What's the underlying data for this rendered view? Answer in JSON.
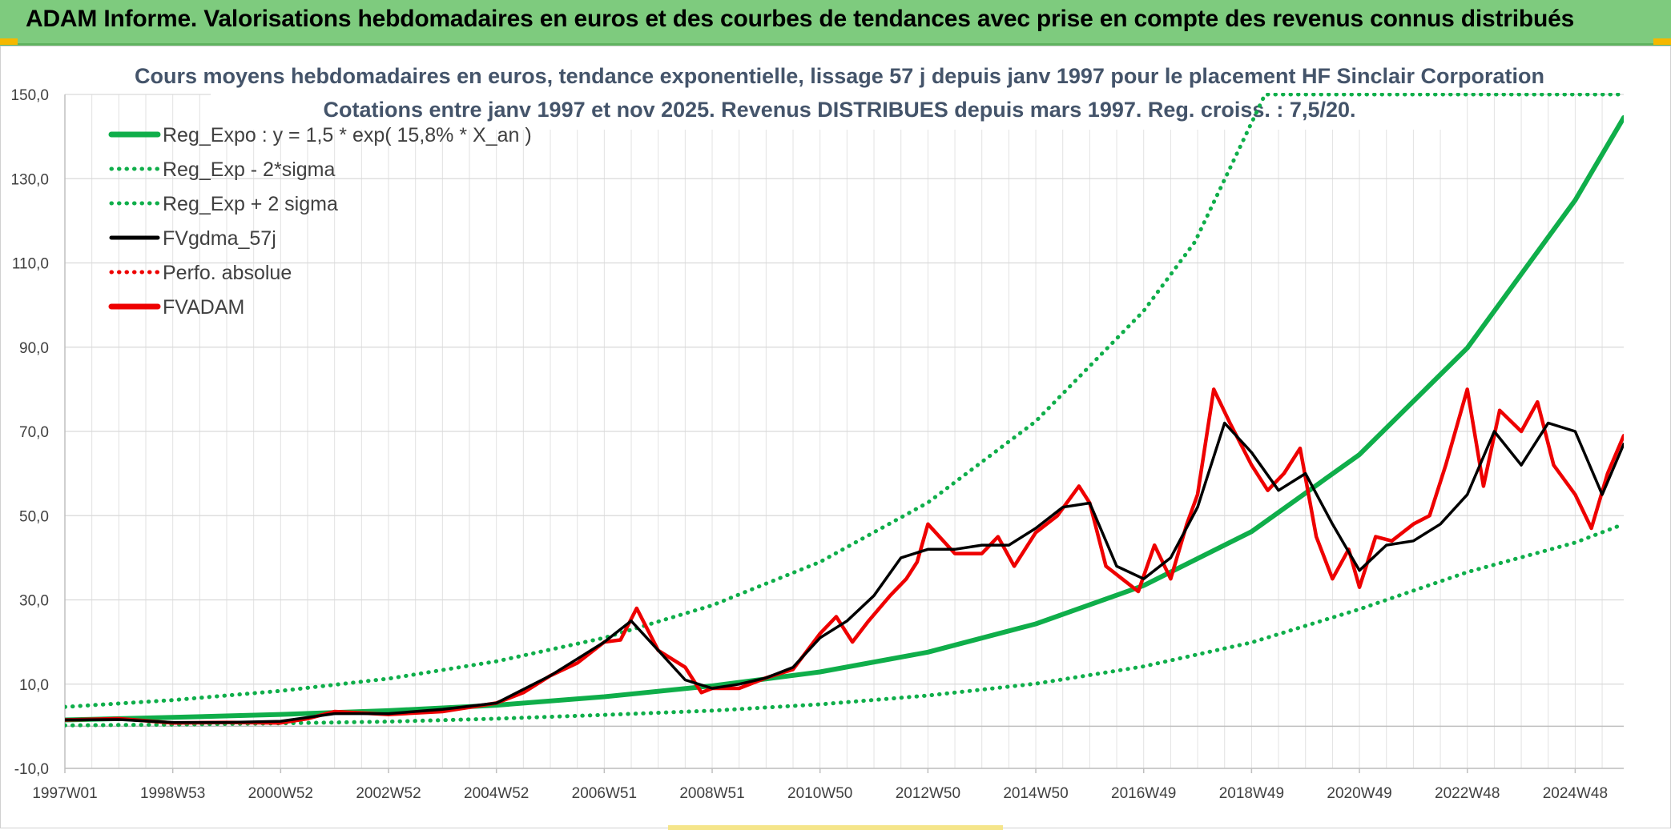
{
  "header": {
    "title": "ADAM Informe. Valorisations hebdomadaires en euros et des courbes de tendances avec prise en compte des revenus connus distribués"
  },
  "colors": {
    "header_bg": "#7ecb7e",
    "green": "#0fae4a",
    "black": "#000000",
    "red": "#ee0000"
  },
  "chart_data": {
    "type": "line",
    "title_line1": "Cours moyens hebdomadaires en euros, tendance exponentielle, lissage 57 j depuis janv 1997 pour le placement HF Sinclair Corporation",
    "title_line2": "Cotations entre janv 1997 et nov 2025. Revenus DISTRIBUES depuis mars 1997. Reg. croiss. : 7,5/20.",
    "ylim": [
      -10,
      150
    ],
    "xlim": [
      1997.0,
      2025.9
    ],
    "y_ticks": [
      "-10,0",
      "10,0",
      "30,0",
      "50,0",
      "70,0",
      "90,0",
      "110,0",
      "130,0",
      "150,0"
    ],
    "y_tick_values": [
      -10,
      10,
      30,
      50,
      70,
      90,
      110,
      130,
      150
    ],
    "x_ticks": [
      "1997W01",
      "1998W53",
      "2000W52",
      "2002W52",
      "2004W52",
      "2006W51",
      "2008W51",
      "2010W50",
      "2012W50",
      "2014W50",
      "2016W49",
      "2018W49",
      "2020W49",
      "2022W48",
      "2024W48"
    ],
    "x_tick_values": [
      1997.0,
      1999.0,
      2001.0,
      2003.0,
      2005.0,
      2007.0,
      2009.0,
      2011.0,
      2013.0,
      2015.0,
      2017.0,
      2019.0,
      2021.0,
      2023.0,
      2025.0
    ],
    "legend": [
      {
        "label": "Reg_Expo : y = 1,5 * exp( 15,8% *  X_an )",
        "style": "solid-thick",
        "color": "#0fae4a"
      },
      {
        "label": "Reg_Exp - 2*sigma",
        "style": "dotted",
        "color": "#0fae4a"
      },
      {
        "label": "Reg_Exp + 2 sigma",
        "style": "dotted",
        "color": "#0fae4a"
      },
      {
        "label": "FVgdma_57j",
        "style": "solid",
        "color": "#000000"
      },
      {
        "label": "Perfo. absolue",
        "style": "dotted",
        "color": "#ee0000"
      },
      {
        "label": "FVADAM",
        "style": "solid-thick",
        "color": "#ee0000"
      }
    ],
    "series": [
      {
        "name": "Reg_Expo",
        "x": [
          1997.0,
          1999.0,
          2001.0,
          2003.0,
          2005.0,
          2007.0,
          2009.0,
          2011.0,
          2013.0,
          2015.0,
          2017.0,
          2019.0,
          2021.0,
          2023.0,
          2025.0,
          2025.9
        ],
        "values": [
          1.5,
          2.1,
          2.8,
          3.7,
          5.0,
          7.0,
          9.6,
          12.9,
          17.6,
          24.3,
          33.4,
          46.2,
          64.5,
          89.8,
          124.9,
          144.5
        ]
      },
      {
        "name": "Reg_Exp - 2*sigma",
        "x": [
          1997.0,
          1999.0,
          2001.0,
          2003.0,
          2005.0,
          2007.0,
          2009.0,
          2011.0,
          2013.0,
          2015.0,
          2017.0,
          2019.0,
          2021.0,
          2023.0,
          2025.0,
          2025.9
        ],
        "values": [
          0.2,
          0.4,
          0.7,
          1.1,
          1.8,
          2.7,
          3.7,
          5.2,
          7.3,
          10.1,
          14.2,
          19.9,
          27.8,
          36.6,
          43.6,
          48.0
        ]
      },
      {
        "name": "Reg_Exp + 2 sigma",
        "x": [
          1997.0,
          1999.0,
          2001.0,
          2003.0,
          2005.0,
          2007.0,
          2009.0,
          2011.0,
          2013.0,
          2015.0,
          2017.0,
          2017.95,
          2019.25,
          2025.9
        ],
        "values": [
          4.6,
          6.2,
          8.4,
          11.3,
          15.4,
          21.0,
          28.7,
          39.0,
          53.1,
          72.4,
          98.6,
          115.0,
          150.0,
          150.0
        ]
      },
      {
        "name": "FVgdma_57j",
        "x": [
          1997.0,
          1998.0,
          1999.0,
          2000.0,
          2001.0,
          2002.0,
          2003.0,
          2004.0,
          2005.0,
          2006.0,
          2006.5,
          2007.0,
          2007.5,
          2008.0,
          2008.5,
          2009.0,
          2009.5,
          2010.0,
          2010.5,
          2011.0,
          2011.5,
          2012.0,
          2012.5,
          2013.0,
          2013.5,
          2014.0,
          2014.5,
          2015.0,
          2015.5,
          2016.0,
          2016.5,
          2017.0,
          2017.5,
          2018.0,
          2018.5,
          2019.0,
          2019.5,
          2020.0,
          2020.5,
          2021.0,
          2021.5,
          2022.0,
          2022.5,
          2023.0,
          2023.5,
          2024.0,
          2024.5,
          2025.0,
          2025.5,
          2025.9
        ],
        "values": [
          1.5,
          1.6,
          0.9,
          0.9,
          1.2,
          3.0,
          3.0,
          4.0,
          5.5,
          12.0,
          16.0,
          20.0,
          25.0,
          18.0,
          11.0,
          9.0,
          10.0,
          11.5,
          14.0,
          21.0,
          25.0,
          31.0,
          40.0,
          42.0,
          42.0,
          43.0,
          43.0,
          47.0,
          52.0,
          53.0,
          38.0,
          35.0,
          40.0,
          52.0,
          72.0,
          65.0,
          56.0,
          60.0,
          48.0,
          37.0,
          43.0,
          44.0,
          48.0,
          55.0,
          70.0,
          62.0,
          72.0,
          70.0,
          55.0,
          67.0
        ]
      },
      {
        "name": "FVADAM",
        "x": [
          1997.0,
          1998.0,
          1999.0,
          2000.0,
          2001.0,
          2001.5,
          2002.0,
          2003.0,
          2004.0,
          2005.0,
          2005.5,
          2006.0,
          2006.5,
          2007.0,
          2007.3,
          2007.6,
          2008.0,
          2008.5,
          2008.8,
          2009.0,
          2009.5,
          2010.0,
          2010.5,
          2011.0,
          2011.3,
          2011.6,
          2011.9,
          2012.3,
          2012.6,
          2012.8,
          2013.0,
          2013.5,
          2014.0,
          2014.3,
          2014.6,
          2015.0,
          2015.4,
          2015.8,
          2016.0,
          2016.3,
          2016.6,
          2016.9,
          2017.2,
          2017.5,
          2017.8,
          2018.0,
          2018.3,
          2018.6,
          2019.0,
          2019.3,
          2019.6,
          2019.9,
          2020.2,
          2020.5,
          2020.8,
          2021.0,
          2021.3,
          2021.6,
          2022.0,
          2022.3,
          2022.6,
          2023.0,
          2023.3,
          2023.6,
          2024.0,
          2024.3,
          2024.6,
          2025.0,
          2025.3,
          2025.6,
          2025.9
        ],
        "values": [
          1.5,
          1.8,
          0.8,
          0.9,
          0.8,
          1.8,
          3.5,
          2.8,
          3.5,
          5.5,
          8.0,
          12.0,
          15.0,
          20.0,
          20.5,
          28.0,
          18.0,
          14.0,
          8.0,
          9.0,
          9.0,
          11.5,
          13.5,
          22.0,
          26.0,
          20.0,
          25.0,
          31.0,
          35.0,
          39.0,
          48.0,
          41.0,
          41.0,
          45.0,
          38.0,
          46.0,
          50.0,
          57.0,
          53.0,
          38.0,
          35.0,
          32.0,
          43.0,
          35.0,
          48.0,
          55.0,
          80.0,
          72.0,
          62.0,
          56.0,
          60.0,
          66.0,
          45.0,
          35.0,
          42.0,
          33.0,
          45.0,
          44.0,
          48.0,
          50.0,
          62.0,
          80.0,
          57.0,
          75.0,
          70.0,
          77.0,
          62.0,
          55.0,
          47.0,
          60.0,
          69.0
        ]
      }
    ]
  }
}
